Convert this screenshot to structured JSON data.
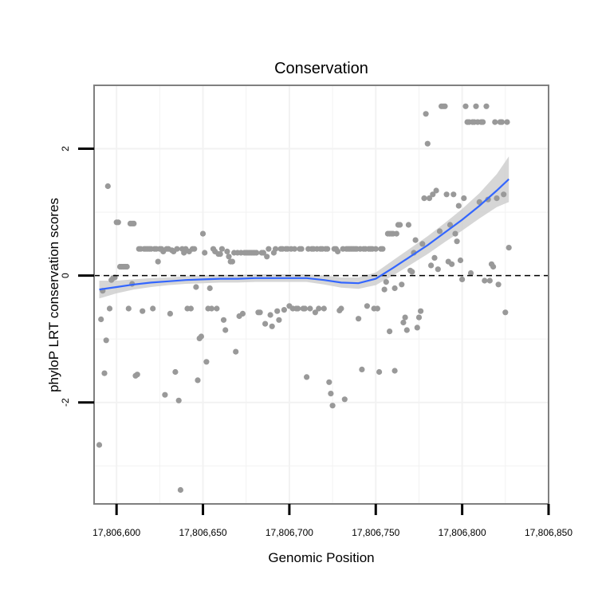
{
  "chart_data": {
    "type": "scatter",
    "title": "Conservation",
    "xlabel": "Genomic Position",
    "ylabel": "phyloP LRT conservation scores",
    "xlim": [
      17806587,
      17806850
    ],
    "ylim": [
      -3.6,
      3.0
    ],
    "x_ticks": [
      {
        "value": 17806600,
        "label": "17,806,600"
      },
      {
        "value": 17806650,
        "label": "17,806,650"
      },
      {
        "value": 17806700,
        "label": "17,806,700"
      },
      {
        "value": 17806750,
        "label": "17,806,750"
      },
      {
        "value": 17806800,
        "label": "17,806,800"
      },
      {
        "value": 17806850,
        "label": "17,806,850"
      }
    ],
    "y_ticks": [
      {
        "value": -2,
        "label": "-2"
      },
      {
        "value": 0,
        "label": "0"
      },
      {
        "value": 2,
        "label": "2"
      }
    ],
    "reference_line_y": 0,
    "colors": {
      "points": "#999999",
      "smooth": "#3366ff",
      "ribbon": "#cccccc",
      "panel_border": "#7f7f7f",
      "grid": "#f2f2f2"
    },
    "points": [
      [
        17806590,
        -2.67
      ],
      [
        17806591,
        -0.69
      ],
      [
        17806592,
        -0.24
      ],
      [
        17806593,
        -1.54
      ],
      [
        17806594,
        -1.02
      ],
      [
        17806595,
        1.41
      ],
      [
        17806596,
        -0.52
      ],
      [
        17806597,
        -0.07
      ],
      [
        17806598,
        -0.04
      ],
      [
        17806599,
        -0.03
      ],
      [
        17806600,
        0.84
      ],
      [
        17806601,
        0.84
      ],
      [
        17806602,
        0.14
      ],
      [
        17806603,
        0.14
      ],
      [
        17806604,
        0.14
      ],
      [
        17806605,
        0.14
      ],
      [
        17806606,
        0.14
      ],
      [
        17806607,
        -0.52
      ],
      [
        17806608,
        0.82
      ],
      [
        17806609,
        0.82
      ],
      [
        17806609,
        -0.13
      ],
      [
        17806610,
        0.82
      ],
      [
        17806611,
        -1.58
      ],
      [
        17806612,
        -1.56
      ],
      [
        17806613,
        0.42
      ],
      [
        17806614,
        0.42
      ],
      [
        17806615,
        -0.56
      ],
      [
        17806616,
        0.42
      ],
      [
        17806617,
        0.42
      ],
      [
        17806618,
        0.42
      ],
      [
        17806619,
        0.42
      ],
      [
        17806620,
        0.42
      ],
      [
        17806621,
        -0.52
      ],
      [
        17806622,
        0.42
      ],
      [
        17806623,
        0.42
      ],
      [
        17806624,
        0.22
      ],
      [
        17806625,
        0.42
      ],
      [
        17806626,
        0.42
      ],
      [
        17806627,
        0.38
      ],
      [
        17806628,
        -1.88
      ],
      [
        17806629,
        0.42
      ],
      [
        17806630,
        0.42
      ],
      [
        17806631,
        -0.6
      ],
      [
        17806632,
        0.4
      ],
      [
        17806633,
        0.38
      ],
      [
        17806634,
        -1.52
      ],
      [
        17806635,
        0.42
      ],
      [
        17806636,
        -1.97
      ],
      [
        17806637,
        -3.38
      ],
      [
        17806638,
        0.42
      ],
      [
        17806639,
        0.36
      ],
      [
        17806640,
        0.42
      ],
      [
        17806641,
        -0.52
      ],
      [
        17806642,
        0.38
      ],
      [
        17806643,
        -0.52
      ],
      [
        17806644,
        0.42
      ],
      [
        17806645,
        0.42
      ],
      [
        17806646,
        -0.18
      ],
      [
        17806647,
        -1.65
      ],
      [
        17806648,
        -0.99
      ],
      [
        17806649,
        -0.96
      ],
      [
        17806650,
        0.66
      ],
      [
        17806651,
        0.36
      ],
      [
        17806652,
        -1.36
      ],
      [
        17806653,
        -0.52
      ],
      [
        17806654,
        -0.2
      ],
      [
        17806655,
        -0.52
      ],
      [
        17806656,
        0.42
      ],
      [
        17806657,
        0.38
      ],
      [
        17806658,
        -0.52
      ],
      [
        17806659,
        0.34
      ],
      [
        17806660,
        0.34
      ],
      [
        17806661,
        0.42
      ],
      [
        17806662,
        -0.7
      ],
      [
        17806663,
        -0.86
      ],
      [
        17806664,
        0.38
      ],
      [
        17806665,
        0.3
      ],
      [
        17806666,
        0.22
      ],
      [
        17806667,
        0.22
      ],
      [
        17806668,
        0.36
      ],
      [
        17806669,
        -1.2
      ],
      [
        17806670,
        0.36
      ],
      [
        17806671,
        -0.64
      ],
      [
        17806672,
        0.36
      ],
      [
        17806673,
        -0.6
      ],
      [
        17806674,
        0.36
      ],
      [
        17806675,
        0.36
      ],
      [
        17806676,
        0.36
      ],
      [
        17806677,
        0.36
      ],
      [
        17806678,
        0.36
      ],
      [
        17806679,
        0.36
      ],
      [
        17806680,
        0.36
      ],
      [
        17806681,
        0.36
      ],
      [
        17806682,
        -0.58
      ],
      [
        17806683,
        -0.58
      ],
      [
        17806684,
        0.36
      ],
      [
        17806685,
        0.36
      ],
      [
        17806686,
        -0.76
      ],
      [
        17806687,
        0.3
      ],
      [
        17806688,
        0.42
      ],
      [
        17806689,
        -0.62
      ],
      [
        17806690,
        -0.8
      ],
      [
        17806691,
        0.36
      ],
      [
        17806692,
        0.42
      ],
      [
        17806693,
        -0.56
      ],
      [
        17806694,
        -0.7
      ],
      [
        17806695,
        0.42
      ],
      [
        17806696,
        0.42
      ],
      [
        17806697,
        -0.54
      ],
      [
        17806698,
        0.42
      ],
      [
        17806699,
        0.42
      ],
      [
        17806700,
        -0.48
      ],
      [
        17806701,
        0.42
      ],
      [
        17806702,
        -0.52
      ],
      [
        17806703,
        0.42
      ],
      [
        17806704,
        -0.52
      ],
      [
        17806705,
        -0.52
      ],
      [
        17806706,
        0.42
      ],
      [
        17806707,
        0.42
      ],
      [
        17806708,
        -0.52
      ],
      [
        17806709,
        -0.52
      ],
      [
        17806710,
        -1.6
      ],
      [
        17806711,
        0.42
      ],
      [
        17806712,
        -0.52
      ],
      [
        17806713,
        0.42
      ],
      [
        17806714,
        0.42
      ],
      [
        17806715,
        -0.58
      ],
      [
        17806716,
        0.42
      ],
      [
        17806717,
        -0.52
      ],
      [
        17806718,
        0.42
      ],
      [
        17806719,
        0.42
      ],
      [
        17806720,
        -0.52
      ],
      [
        17806721,
        0.42
      ],
      [
        17806722,
        0.42
      ],
      [
        17806723,
        -1.68
      ],
      [
        17806724,
        -1.86
      ],
      [
        17806725,
        -2.05
      ],
      [
        17806726,
        0.42
      ],
      [
        17806727,
        0.42
      ],
      [
        17806728,
        0.38
      ],
      [
        17806729,
        -0.55
      ],
      [
        17806730,
        -0.52
      ],
      [
        17806731,
        0.42
      ],
      [
        17806732,
        -1.95
      ],
      [
        17806733,
        0.42
      ],
      [
        17806734,
        0.42
      ],
      [
        17806735,
        0.42
      ],
      [
        17806736,
        0.42
      ],
      [
        17806737,
        0.42
      ],
      [
        17806738,
        0.42
      ],
      [
        17806739,
        0.42
      ],
      [
        17806740,
        -0.68
      ],
      [
        17806741,
        0.42
      ],
      [
        17806742,
        -1.48
      ],
      [
        17806743,
        0.42
      ],
      [
        17806744,
        0.42
      ],
      [
        17806745,
        -0.48
      ],
      [
        17806746,
        0.42
      ],
      [
        17806747,
        0.42
      ],
      [
        17806748,
        0.42
      ],
      [
        17806749,
        -0.52
      ],
      [
        17806750,
        0.42
      ],
      [
        17806751,
        -0.52
      ],
      [
        17806752,
        -1.52
      ],
      [
        17806753,
        0.42
      ],
      [
        17806754,
        0.42
      ],
      [
        17806755,
        -0.22
      ],
      [
        17806756,
        -0.1
      ],
      [
        17806757,
        0.66
      ],
      [
        17806758,
        0.66
      ],
      [
        17806758,
        -0.88
      ],
      [
        17806759,
        0.66
      ],
      [
        17806760,
        0.66
      ],
      [
        17806761,
        -1.5
      ],
      [
        17806761,
        -0.2
      ],
      [
        17806762,
        0.66
      ],
      [
        17806763,
        0.8
      ],
      [
        17806764,
        0.8
      ],
      [
        17806765,
        -0.14
      ],
      [
        17806766,
        -0.74
      ],
      [
        17806767,
        -0.66
      ],
      [
        17806768,
        -0.86
      ],
      [
        17806769,
        0.8
      ],
      [
        17806770,
        0.08
      ],
      [
        17806771,
        0.06
      ],
      [
        17806772,
        0.36
      ],
      [
        17806773,
        0.56
      ],
      [
        17806774,
        -0.82
      ],
      [
        17806775,
        -0.66
      ],
      [
        17806776,
        -0.56
      ],
      [
        17806777,
        0.5
      ],
      [
        17806778,
        1.22
      ],
      [
        17806779,
        2.55
      ],
      [
        17806780,
        2.08
      ],
      [
        17806781,
        1.22
      ],
      [
        17806782,
        0.16
      ],
      [
        17806783,
        1.28
      ],
      [
        17806784,
        0.28
      ],
      [
        17806785,
        1.34
      ],
      [
        17806786,
        0.1
      ],
      [
        17806787,
        0.7
      ],
      [
        17806788,
        2.67
      ],
      [
        17806789,
        2.67
      ],
      [
        17806790,
        2.67
      ],
      [
        17806791,
        1.28
      ],
      [
        17806792,
        0.22
      ],
      [
        17806793,
        0.8
      ],
      [
        17806794,
        0.18
      ],
      [
        17806795,
        1.28
      ],
      [
        17806796,
        0.66
      ],
      [
        17806797,
        0.54
      ],
      [
        17806798,
        1.1
      ],
      [
        17806799,
        0.24
      ],
      [
        17806800,
        -0.06
      ],
      [
        17806801,
        1.22
      ],
      [
        17806802,
        2.67
      ],
      [
        17806803,
        2.42
      ],
      [
        17806804,
        2.42
      ],
      [
        17806805,
        0.04
      ],
      [
        17806806,
        2.42
      ],
      [
        17806807,
        2.42
      ],
      [
        17806808,
        2.67
      ],
      [
        17806809,
        2.42
      ],
      [
        17806810,
        1.16
      ],
      [
        17806811,
        2.42
      ],
      [
        17806812,
        2.42
      ],
      [
        17806813,
        -0.08
      ],
      [
        17806814,
        2.67
      ],
      [
        17806815,
        1.2
      ],
      [
        17806816,
        -0.08
      ],
      [
        17806817,
        0.18
      ],
      [
        17806818,
        0.14
      ],
      [
        17806819,
        2.42
      ],
      [
        17806820,
        1.22
      ],
      [
        17806821,
        -0.14
      ],
      [
        17806822,
        2.42
      ],
      [
        17806823,
        2.42
      ],
      [
        17806824,
        1.28
      ],
      [
        17806825,
        -0.58
      ],
      [
        17806826,
        2.42
      ],
      [
        17806827,
        0.44
      ]
    ],
    "smooth": [
      [
        17806590,
        -0.22
      ],
      [
        17806600,
        -0.18
      ],
      [
        17806610,
        -0.14
      ],
      [
        17806620,
        -0.11
      ],
      [
        17806630,
        -0.09
      ],
      [
        17806640,
        -0.07
      ],
      [
        17806650,
        -0.06
      ],
      [
        17806660,
        -0.05
      ],
      [
        17806670,
        -0.05
      ],
      [
        17806680,
        -0.04
      ],
      [
        17806690,
        -0.04
      ],
      [
        17806700,
        -0.04
      ],
      [
        17806710,
        -0.04
      ],
      [
        17806720,
        -0.07
      ],
      [
        17806730,
        -0.11
      ],
      [
        17806740,
        -0.12
      ],
      [
        17806750,
        -0.05
      ],
      [
        17806760,
        0.12
      ],
      [
        17806770,
        0.3
      ],
      [
        17806780,
        0.48
      ],
      [
        17806790,
        0.68
      ],
      [
        17806800,
        0.88
      ],
      [
        17806810,
        1.1
      ],
      [
        17806820,
        1.34
      ],
      [
        17806827,
        1.52
      ]
    ],
    "smooth_se": [
      0.14,
      0.1,
      0.08,
      0.07,
      0.06,
      0.06,
      0.06,
      0.06,
      0.06,
      0.06,
      0.06,
      0.06,
      0.06,
      0.07,
      0.08,
      0.09,
      0.1,
      0.12,
      0.13,
      0.14,
      0.15,
      0.17,
      0.2,
      0.26,
      0.36
    ]
  }
}
